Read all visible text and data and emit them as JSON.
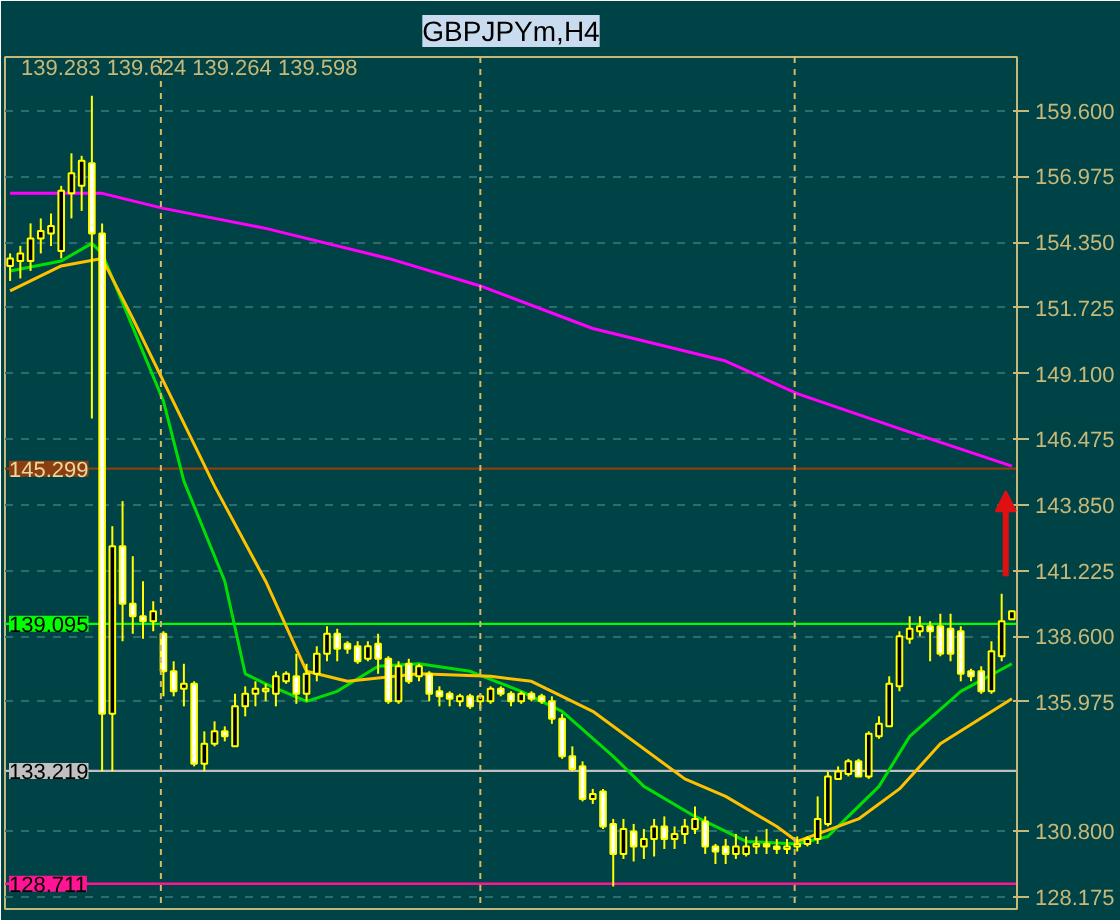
{
  "chart_data": {
    "type": "candlestick",
    "title": "GBPJPYm,H4",
    "annotations": [
      "139.283 139.624 139.264 139.598"
    ],
    "color": "#ffff00",
    "tick_labels": "y",
    "grid": "y",
    "categories": [
      null,
      null,
      null,
      null,
      null,
      null,
      null,
      null,
      null,
      null,
      null,
      null,
      null,
      null,
      null,
      null,
      null,
      null,
      null,
      null,
      null,
      null,
      null,
      null,
      null,
      null,
      null,
      null,
      null,
      null,
      null,
      null,
      null,
      null,
      null,
      null,
      null,
      null,
      null,
      null,
      null,
      null,
      null,
      null,
      null,
      null,
      null,
      null,
      null,
      null,
      null,
      null,
      null,
      null,
      null,
      null,
      null,
      null,
      null,
      null,
      null,
      null,
      null,
      null,
      null,
      null,
      null,
      null,
      null,
      null,
      null,
      null,
      null,
      null,
      null,
      null,
      null,
      null,
      null,
      null,
      null,
      null,
      null,
      null,
      null,
      null,
      null,
      null,
      null,
      null,
      null,
      null,
      null,
      null,
      null,
      null,
      null,
      null,
      null
    ],
    "ohlc": [
      [
        153.4,
        153.9,
        152.8,
        153.7
      ],
      [
        153.6,
        154.2,
        152.9,
        153.9
      ],
      [
        153.6,
        155.1,
        153.2,
        154.5
      ],
      [
        154.5,
        155.3,
        153.9,
        154.8
      ],
      [
        154.7,
        155.5,
        154.2,
        155.0
      ],
      [
        154.0,
        156.6,
        153.7,
        156.4
      ],
      [
        156.3,
        157.9,
        155.3,
        157.1
      ],
      [
        156.6,
        157.8,
        155.6,
        157.6
      ],
      [
        157.5,
        160.2,
        147.3,
        154.7
      ],
      [
        154.7,
        155.1,
        133.2,
        135.5
      ],
      [
        135.5,
        143.0,
        133.2,
        142.2
      ],
      [
        142.2,
        144.0,
        138.4,
        139.9
      ],
      [
        139.9,
        141.8,
        138.7,
        139.4
      ],
      [
        139.4,
        140.8,
        138.5,
        139.2
      ],
      [
        139.2,
        140.0,
        138.8,
        139.6
      ],
      [
        138.7,
        138.8,
        136.2,
        137.2
      ],
      [
        137.2,
        137.6,
        136.2,
        136.4
      ],
      [
        136.5,
        137.5,
        135.8,
        136.7
      ],
      [
        136.7,
        136.8,
        133.4,
        133.5
      ],
      [
        133.5,
        134.8,
        133.2,
        134.3
      ],
      [
        134.3,
        135.2,
        134.2,
        134.8
      ],
      [
        134.8,
        135.0,
        134.4,
        134.6
      ],
      [
        134.2,
        136.3,
        134.2,
        135.8
      ],
      [
        135.8,
        136.6,
        135.4,
        136.3
      ],
      [
        136.3,
        136.8,
        135.8,
        136.5
      ],
      [
        136.4,
        136.7,
        136.0,
        136.5
      ],
      [
        136.3,
        137.2,
        135.8,
        137.0
      ],
      [
        136.8,
        137.2,
        136.7,
        137.1
      ],
      [
        137.0,
        137.9,
        135.9,
        136.3
      ],
      [
        136.3,
        137.5,
        136.0,
        137.1
      ],
      [
        137.1,
        138.2,
        136.8,
        137.9
      ],
      [
        137.9,
        139.0,
        137.6,
        138.7
      ],
      [
        138.7,
        138.9,
        137.6,
        138.1
      ],
      [
        138.3,
        138.4,
        137.9,
        138.1
      ],
      [
        138.2,
        138.4,
        137.5,
        137.6
      ],
      [
        137.7,
        138.4,
        137.6,
        138.2
      ],
      [
        138.3,
        138.7,
        137.1,
        137.7
      ],
      [
        137.7,
        137.8,
        135.9,
        136.0
      ],
      [
        136.0,
        137.6,
        135.9,
        137.4
      ],
      [
        137.5,
        137.7,
        136.7,
        136.8
      ],
      [
        137.0,
        137.5,
        136.8,
        137.4
      ],
      [
        137.1,
        137.2,
        136.0,
        136.3
      ],
      [
        136.4,
        136.6,
        135.8,
        136.2
      ],
      [
        136.3,
        136.4,
        135.8,
        136.1
      ],
      [
        136.0,
        136.3,
        135.8,
        136.2
      ],
      [
        136.2,
        136.3,
        135.7,
        135.8
      ],
      [
        136.0,
        136.3,
        135.7,
        136.2
      ],
      [
        136.0,
        136.6,
        135.9,
        136.5
      ],
      [
        136.5,
        136.6,
        136.2,
        136.3
      ],
      [
        136.3,
        136.4,
        135.8,
        136.0
      ],
      [
        136.0,
        136.4,
        135.9,
        136.3
      ],
      [
        136.3,
        136.4,
        136.0,
        136.1
      ],
      [
        136.2,
        136.3,
        135.9,
        136.0
      ],
      [
        136.0,
        136.2,
        135.1,
        135.3
      ],
      [
        135.3,
        135.5,
        133.7,
        133.8
      ],
      [
        133.8,
        134.2,
        133.2,
        133.3
      ],
      [
        133.4,
        133.6,
        132.0,
        132.1
      ],
      [
        132.1,
        132.5,
        131.9,
        132.3
      ],
      [
        132.4,
        132.5,
        130.9,
        131.0
      ],
      [
        131.1,
        131.3,
        128.6,
        129.9
      ],
      [
        129.9,
        131.3,
        129.7,
        130.9
      ],
      [
        130.8,
        131.1,
        129.6,
        130.2
      ],
      [
        130.2,
        130.9,
        129.7,
        130.5
      ],
      [
        130.5,
        131.3,
        129.8,
        131.0
      ],
      [
        131.0,
        131.4,
        130.1,
        130.5
      ],
      [
        130.5,
        131.0,
        130.1,
        130.7
      ],
      [
        130.7,
        131.3,
        130.3,
        131.0
      ],
      [
        130.9,
        131.8,
        130.7,
        131.3
      ],
      [
        131.2,
        131.4,
        129.9,
        130.2
      ],
      [
        130.2,
        130.3,
        129.5,
        130.0
      ],
      [
        130.2,
        130.5,
        129.5,
        129.9
      ],
      [
        129.9,
        130.7,
        129.7,
        130.2
      ],
      [
        129.9,
        130.6,
        129.8,
        130.2
      ],
      [
        130.2,
        130.6,
        129.9,
        130.3
      ],
      [
        130.3,
        130.9,
        129.9,
        130.2
      ],
      [
        130.2,
        130.5,
        129.9,
        130.1
      ],
      [
        130.1,
        130.5,
        129.9,
        130.2
      ],
      [
        130.2,
        130.6,
        130.0,
        130.3
      ],
      [
        130.3,
        130.6,
        130.2,
        130.5
      ],
      [
        130.5,
        132.2,
        130.3,
        131.3
      ],
      [
        131.1,
        133.2,
        131.0,
        133.0
      ],
      [
        132.9,
        133.4,
        132.9,
        133.2
      ],
      [
        133.1,
        133.7,
        133.0,
        133.6
      ],
      [
        133.6,
        133.7,
        133.0,
        133.0
      ],
      [
        133.0,
        134.8,
        132.9,
        134.7
      ],
      [
        134.6,
        135.4,
        134.5,
        135.1
      ],
      [
        135.0,
        137.0,
        135.0,
        136.7
      ],
      [
        136.6,
        138.8,
        136.4,
        138.6
      ],
      [
        138.5,
        139.4,
        138.3,
        138.9
      ],
      [
        138.8,
        139.4,
        138.6,
        139.0
      ],
      [
        139.0,
        139.2,
        137.6,
        138.8
      ],
      [
        139.0,
        139.5,
        137.8,
        137.9
      ],
      [
        138.9,
        139.5,
        137.6,
        137.9
      ],
      [
        138.8,
        139.0,
        136.8,
        137.1
      ],
      [
        137.2,
        137.3,
        136.8,
        137.0
      ],
      [
        137.2,
        137.4,
        136.3,
        136.4
      ],
      [
        136.4,
        138.4,
        136.3,
        138.0
      ],
      [
        137.8,
        140.3,
        137.6,
        139.2
      ],
      [
        139.283,
        139.624,
        139.264,
        139.598
      ]
    ],
    "ylim": [
      127.7,
      161.75
    ],
    "yticks": [
      {
        "value": 159.6,
        "label": "159.600"
      },
      {
        "value": 156.975,
        "label": "156.975"
      },
      {
        "value": 154.35,
        "label": "154.350"
      },
      {
        "value": 151.725,
        "label": "151.725"
      },
      {
        "value": 149.1,
        "label": "149.100"
      },
      {
        "value": 146.475,
        "label": "146.475"
      },
      {
        "value": 143.85,
        "label": "143.850"
      },
      {
        "value": 141.225,
        "label": "141.225"
      },
      {
        "value": 138.6,
        "label": "138.600"
      },
      {
        "value": 135.975,
        "label": "135.975"
      },
      {
        "value": 130.8,
        "label": "130.800"
      },
      {
        "value": 128.175,
        "label": "128.175"
      }
    ],
    "ref_lines": [
      {
        "axis": "y",
        "value": 145.299,
        "label": "145.299",
        "color": "#8b3e0f"
      },
      {
        "axis": "y",
        "value": 139.095,
        "label": "139.095",
        "color": "#00ff00"
      },
      {
        "axis": "y",
        "value": 133.219,
        "label": "133.219",
        "color": "#c0c0c0"
      },
      {
        "axis": "y",
        "value": 128.711,
        "label": "128.711",
        "color": "#ff1493"
      }
    ],
    "series": [
      {
        "type": "line",
        "color": "#ff00ff",
        "values": [
          156.3,
          null,
          null,
          null,
          null,
          null,
          null,
          null,
          null,
          156.3,
          null,
          null,
          null,
          null,
          null,
          155.7,
          null,
          null,
          null,
          null,
          null,
          null,
          null,
          null,
          null,
          154.9,
          null,
          null,
          null,
          null,
          null,
          null,
          null,
          null,
          null,
          null,
          null,
          153.7,
          null,
          null,
          null,
          null,
          null,
          null,
          null,
          null,
          152.6,
          null,
          null,
          null,
          null,
          null,
          null,
          null,
          null,
          null,
          null,
          150.9,
          null,
          null,
          null,
          null,
          null,
          null,
          null,
          null,
          null,
          null,
          null,
          null,
          149.6,
          null,
          null,
          null,
          null,
          null,
          null,
          148.3,
          null,
          null,
          null,
          null,
          null,
          null,
          null,
          null,
          null,
          146.9,
          null,
          null,
          null,
          null,
          null,
          null,
          null,
          null,
          null,
          null,
          145.4
        ]
      },
      {
        "type": "line",
        "color": "#00e000",
        "values": [
          153.2,
          null,
          null,
          null,
          null,
          153.6,
          null,
          null,
          154.3,
          153.9,
          null,
          null,
          null,
          null,
          null,
          148.0,
          null,
          144.8,
          null,
          null,
          null,
          140.8,
          null,
          137.1,
          null,
          136.7,
          null,
          null,
          null,
          136.0,
          null,
          null,
          136.4,
          null,
          null,
          null,
          137.4,
          null,
          null,
          null,
          137.5,
          null,
          null,
          null,
          null,
          137.2,
          null,
          null,
          null,
          null,
          136.4,
          null,
          null,
          null,
          135.6,
          null,
          null,
          null,
          null,
          133.8,
          null,
          null,
          132.6,
          null,
          null,
          null,
          null,
          131.4,
          null,
          null,
          null,
          null,
          130.4,
          null,
          null,
          null,
          null,
          130.3,
          null,
          null,
          130.6,
          null,
          null,
          null,
          null,
          132.6,
          null,
          null,
          134.6,
          null,
          null,
          null,
          null,
          136.4,
          null,
          null,
          null,
          null,
          137.5
        ]
      },
      {
        "type": "line",
        "color": "#ffc000",
        "values": [
          152.4,
          null,
          null,
          null,
          null,
          153.4,
          null,
          null,
          null,
          153.7,
          null,
          null,
          151.3,
          null,
          null,
          null,
          null,
          null,
          null,
          null,
          144.6,
          null,
          null,
          null,
          null,
          140.8,
          null,
          null,
          null,
          137.2,
          null,
          null,
          null,
          136.8,
          null,
          null,
          null,
          null,
          null,
          null,
          137.1,
          null,
          null,
          null,
          null,
          null,
          null,
          137.0,
          null,
          null,
          null,
          136.8,
          null,
          null,
          null,
          null,
          null,
          135.6,
          null,
          null,
          null,
          null,
          null,
          null,
          null,
          null,
          132.9,
          null,
          null,
          null,
          132.2,
          null,
          null,
          null,
          null,
          131.0,
          null,
          130.4,
          null,
          null,
          null,
          null,
          null,
          131.3,
          null,
          null,
          null,
          132.5,
          null,
          null,
          null,
          134.3,
          null,
          null,
          null,
          null,
          null,
          null,
          136.1
        ]
      }
    ]
  }
}
